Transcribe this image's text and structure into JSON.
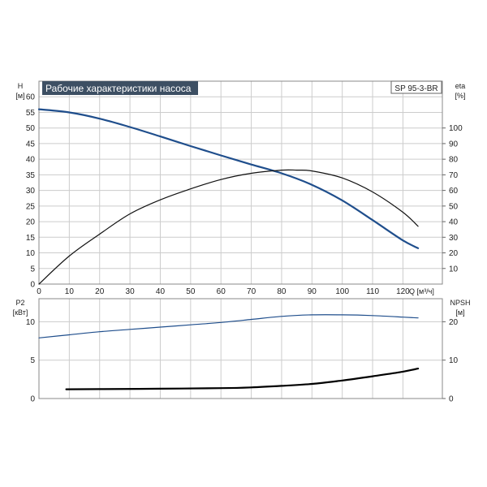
{
  "chart_data": [
    {
      "type": "line",
      "title": "Рабочие характеристики насоса",
      "model": "SP 95-3-BR",
      "x_axis": {
        "label": "Q [м³/ч]",
        "range": [
          0,
          133
        ],
        "ticks": [
          0,
          10,
          20,
          30,
          40,
          50,
          60,
          70,
          80,
          90,
          100,
          110,
          120
        ]
      },
      "y_left": {
        "label": "H",
        "unit": "[м]",
        "range": [
          0,
          65
        ],
        "ticks": [
          0,
          5,
          10,
          15,
          20,
          25,
          30,
          35,
          40,
          45,
          50,
          55,
          60
        ]
      },
      "y_right": {
        "label": "eta",
        "unit": "[%]",
        "range": [
          0,
          130
        ],
        "ticks": [
          10,
          20,
          30,
          40,
          50,
          60,
          70,
          80,
          90,
          100
        ]
      },
      "grid": true,
      "series": [
        {
          "axis": "left",
          "color": "#1f4e8c",
          "width": 2.2,
          "x": [
            0,
            10,
            20,
            30,
            40,
            50,
            60,
            70,
            80,
            90,
            100,
            110,
            120,
            125
          ],
          "y": [
            56,
            55,
            53,
            50.3,
            47.3,
            44.2,
            41.2,
            38.3,
            35.5,
            31.8,
            26.8,
            20.5,
            14,
            11.5
          ]
        },
        {
          "axis": "right",
          "color": "#111111",
          "width": 1.2,
          "x": [
            0,
            10,
            20,
            30,
            40,
            50,
            60,
            70,
            80,
            85,
            90,
            100,
            110,
            120,
            125
          ],
          "y": [
            0,
            18,
            32,
            45,
            54,
            61,
            67,
            71,
            73,
            73,
            72.5,
            68,
            59,
            46,
            37
          ]
        }
      ]
    },
    {
      "type": "line",
      "x_axis": {
        "range": [
          0,
          133
        ],
        "ticks": [
          0,
          10,
          20,
          30,
          40,
          50,
          60,
          70,
          80,
          90,
          100,
          110,
          120
        ]
      },
      "y_left": {
        "label": "P2",
        "unit": "[кВт]",
        "range": [
          0,
          13
        ],
        "ticks": [
          0,
          5,
          10
        ]
      },
      "y_right": {
        "label": "NPSH",
        "unit": "[м]",
        "range": [
          0,
          26
        ],
        "ticks": [
          0,
          10,
          20
        ]
      },
      "grid": true,
      "series": [
        {
          "axis": "left",
          "color": "#1f4e8c",
          "width": 1.2,
          "x": [
            0,
            10,
            20,
            30,
            40,
            50,
            60,
            70,
            80,
            90,
            100,
            110,
            120,
            125
          ],
          "y": [
            7.9,
            8.3,
            8.7,
            9,
            9.3,
            9.6,
            9.9,
            10.3,
            10.7,
            10.9,
            10.9,
            10.8,
            10.6,
            10.5
          ]
        },
        {
          "axis": "right",
          "color": "#000000",
          "width": 2.2,
          "x": [
            9,
            20,
            40,
            60,
            70,
            80,
            90,
            100,
            110,
            120,
            125
          ],
          "y": [
            2.4,
            2.45,
            2.55,
            2.7,
            2.9,
            3.3,
            3.8,
            4.7,
            5.8,
            7,
            7.8
          ]
        }
      ]
    }
  ]
}
